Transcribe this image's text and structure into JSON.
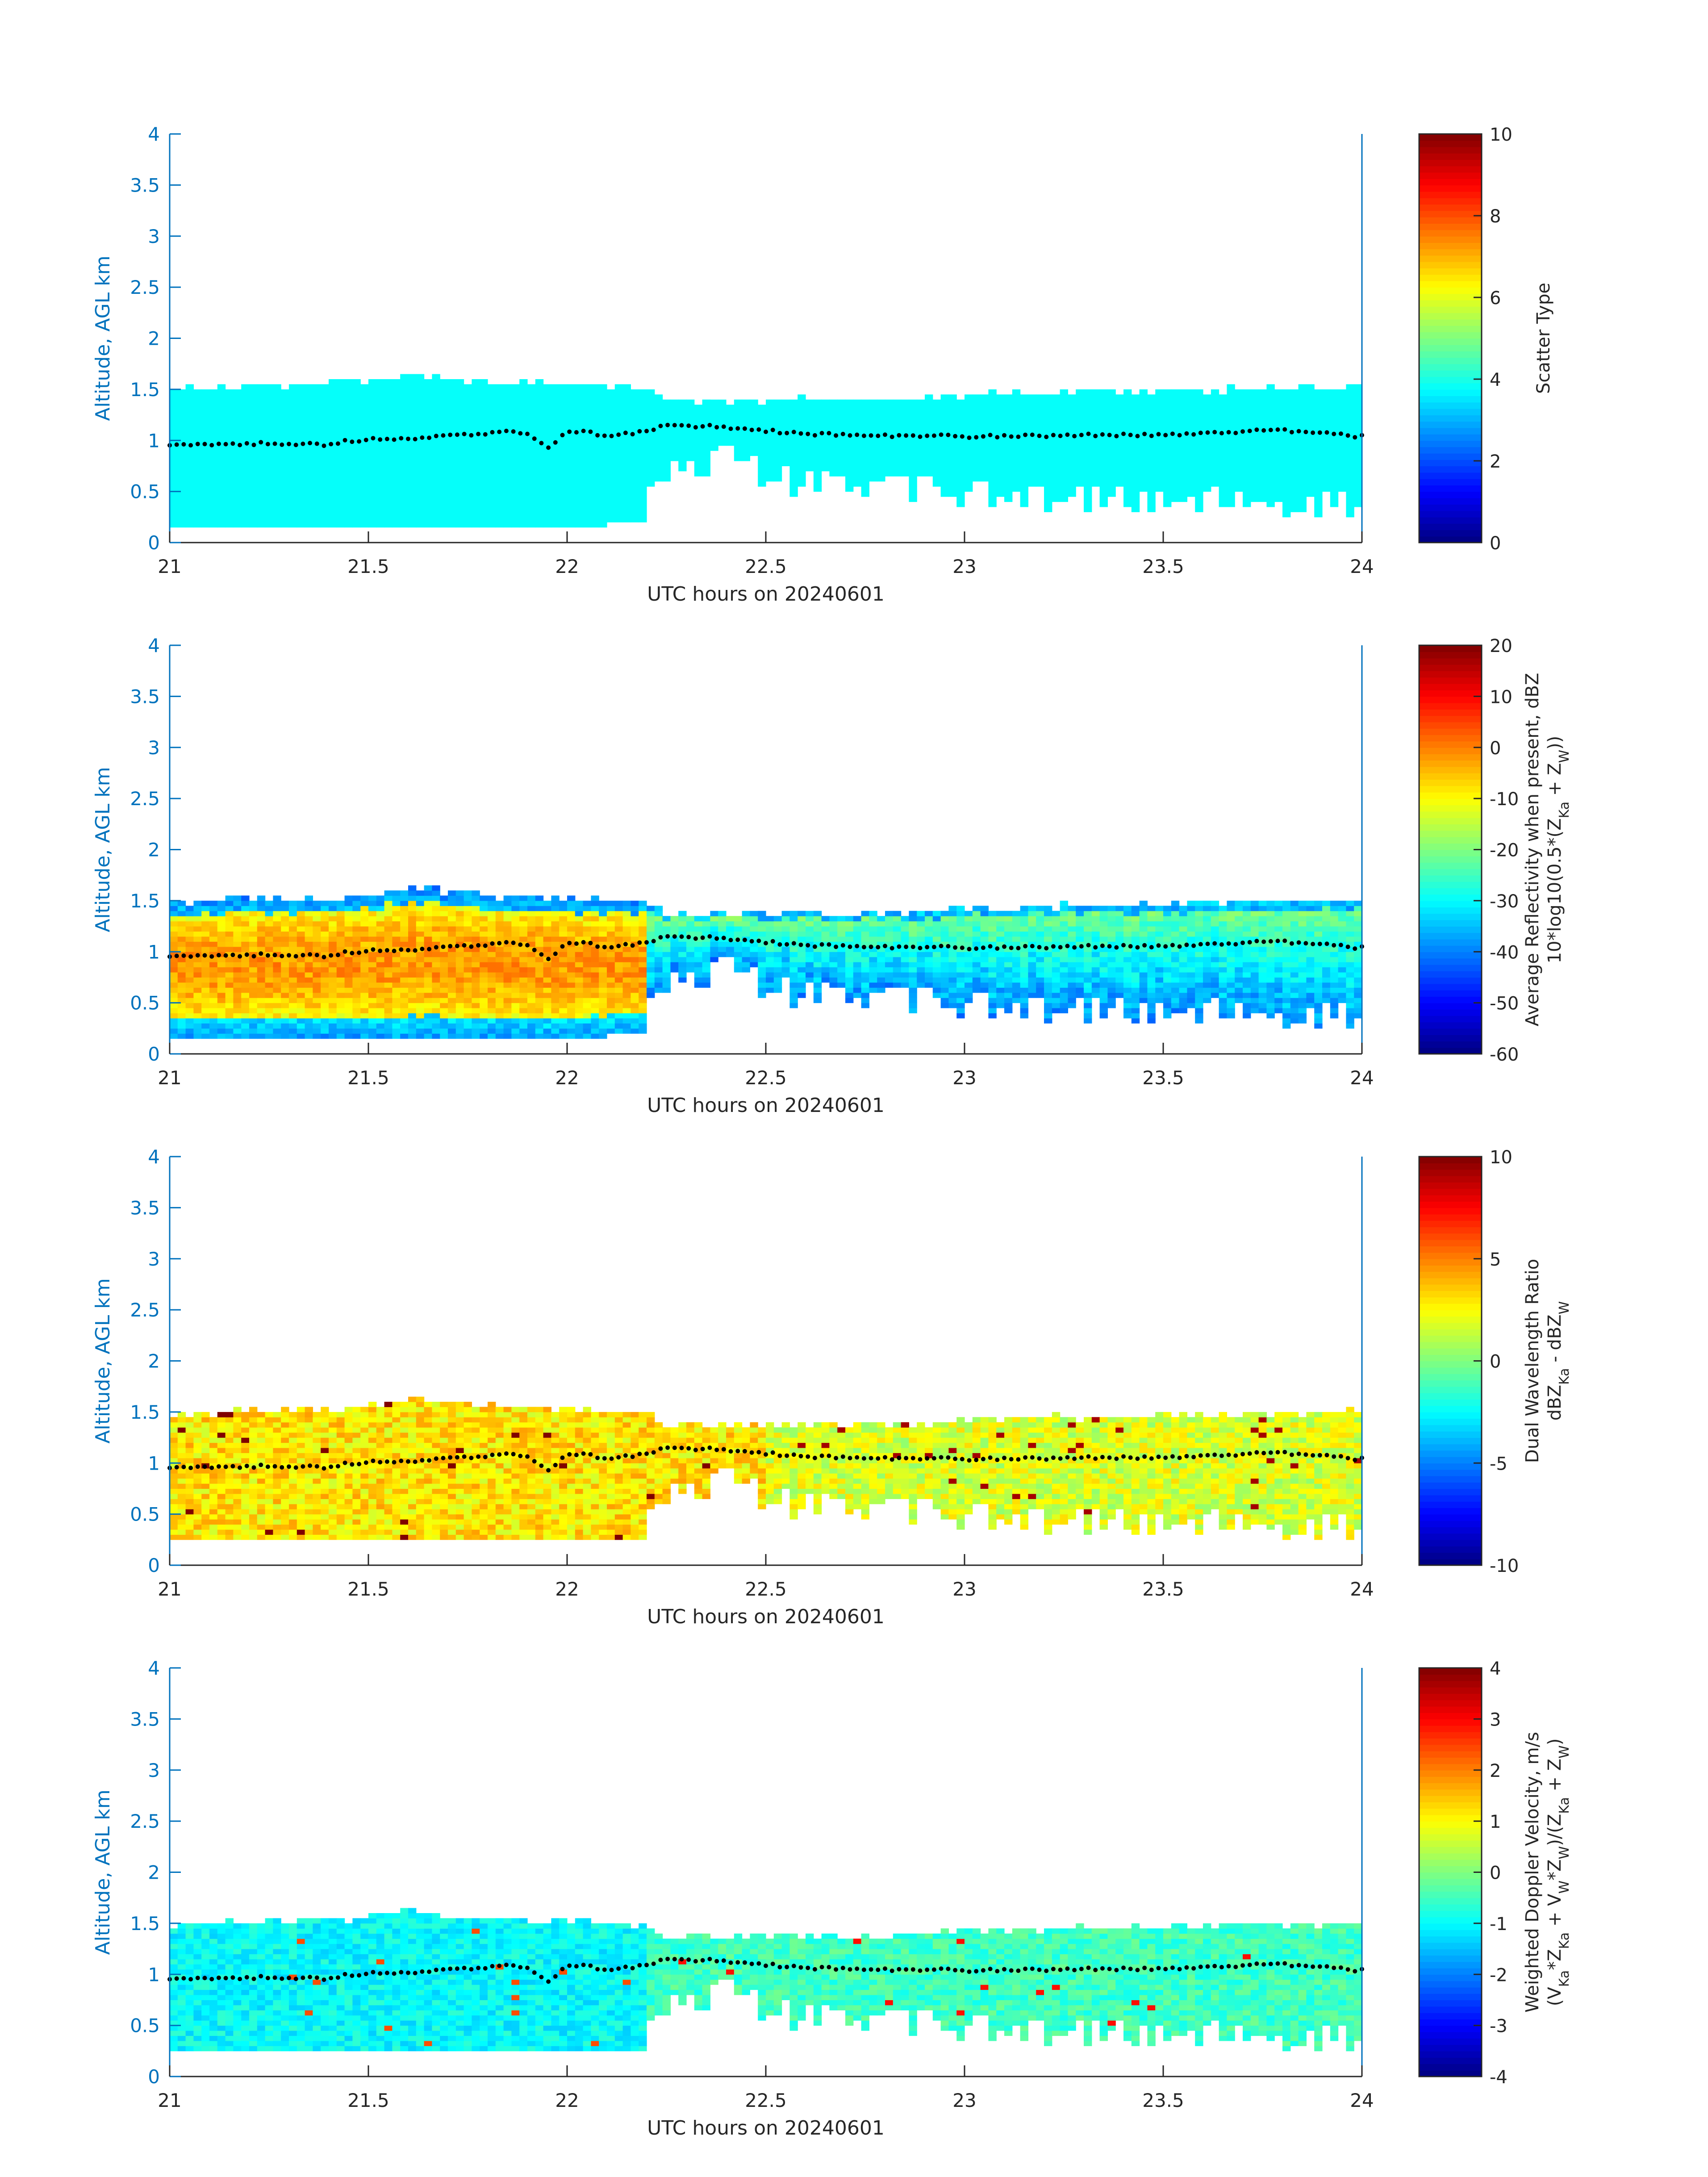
{
  "chart_data": [
    {
      "type": "heatmap",
      "xlabel": "UTC hours on 20240601",
      "ylabel": "Altitude, AGL km",
      "xlim": [
        21,
        24
      ],
      "ylim": [
        0,
        4
      ],
      "xticks": [
        "21",
        "21.5",
        "22",
        "22.5",
        "23",
        "23.5",
        "24"
      ],
      "yticks": [
        "0",
        "0.5",
        "1",
        "1.5",
        "2",
        "2.5",
        "3",
        "3.5",
        "4"
      ],
      "colorbar": {
        "label_lines": [
          "Scatter Type"
        ],
        "ticks": [
          "0",
          "2",
          "4",
          "6",
          "8",
          "10"
        ],
        "range": [
          0,
          10
        ]
      },
      "field": "scatter_type",
      "dominant_value": 3.8,
      "cloud_top_km": [
        [
          21.0,
          1.48
        ],
        [
          21.5,
          1.55
        ],
        [
          21.6,
          1.62
        ],
        [
          21.8,
          1.55
        ],
        [
          22.0,
          1.52
        ],
        [
          22.2,
          1.48
        ],
        [
          22.25,
          1.37
        ],
        [
          22.9,
          1.38
        ],
        [
          23.0,
          1.42
        ],
        [
          23.2,
          1.44
        ],
        [
          24.0,
          1.5
        ]
      ],
      "cloud_base_km": [
        [
          21.0,
          0.18
        ],
        [
          22.0,
          0.18
        ],
        [
          22.1,
          0.2
        ],
        [
          22.2,
          0.2
        ],
        [
          22.25,
          0.5
        ],
        [
          22.3,
          0.6
        ],
        [
          22.4,
          0.75
        ],
        [
          22.5,
          0.55
        ],
        [
          22.6,
          0.45
        ],
        [
          22.8,
          0.4
        ],
        [
          23.0,
          0.35
        ],
        [
          23.5,
          0.3
        ],
        [
          24.0,
          0.25
        ]
      ]
    },
    {
      "type": "heatmap",
      "xlabel": "UTC hours on 20240601",
      "ylabel": "Altitude, AGL km",
      "xlim": [
        21,
        24
      ],
      "ylim": [
        0,
        4
      ],
      "xticks": [
        "21",
        "21.5",
        "22",
        "22.5",
        "23",
        "23.5",
        "24"
      ],
      "yticks": [
        "0",
        "0.5",
        "1",
        "1.5",
        "2",
        "2.5",
        "3",
        "3.5",
        "4"
      ],
      "colorbar": {
        "label_lines": [
          "Average Reflectivity when present, dBZ",
          "10*log10(0.5*(Z_Ka + Z_W))"
        ],
        "ticks": [
          "-60",
          "-50",
          "-40",
          "-30",
          "-20",
          "-10",
          "0",
          "10",
          "20"
        ],
        "range": [
          -60,
          20
        ]
      },
      "field": "reflectivity_dbz",
      "typical_range_dbz": [
        -50,
        0
      ]
    },
    {
      "type": "heatmap",
      "xlabel": "UTC hours on 20240601",
      "ylabel": "Altitude, AGL km",
      "xlim": [
        21,
        24
      ],
      "ylim": [
        0,
        4
      ],
      "xticks": [
        "21",
        "21.5",
        "22",
        "22.5",
        "23",
        "23.5",
        "24"
      ],
      "yticks": [
        "0",
        "0.5",
        "1",
        "1.5",
        "2",
        "2.5",
        "3",
        "3.5",
        "4"
      ],
      "colorbar": {
        "label_lines": [
          "Dual Wavelength Ratio",
          "dBZ_Ka - dBZ_W"
        ],
        "ticks": [
          "-10",
          "-5",
          "0",
          "5",
          "10"
        ],
        "range": [
          -10,
          10
        ]
      },
      "field": "dual_wavelength_ratio_db",
      "typical_range_db": [
        0,
        4
      ]
    },
    {
      "type": "heatmap",
      "xlabel": "UTC hours on 20240601",
      "ylabel": "Altitude, AGL km",
      "xlim": [
        21,
        24
      ],
      "ylim": [
        0,
        4
      ],
      "xticks": [
        "21",
        "21.5",
        "22",
        "22.5",
        "23",
        "23.5",
        "24"
      ],
      "yticks": [
        "0",
        "0.5",
        "1",
        "1.5",
        "2",
        "2.5",
        "3",
        "3.5",
        "4"
      ],
      "colorbar": {
        "label_lines": [
          "Weighted Doppler Velocity, m/s",
          "(V_Ka*Z_Ka + V_W*Z_W)/(Z_Ka + Z_W)"
        ],
        "ticks": [
          "-4",
          "-3",
          "-2",
          "-1",
          "0",
          "1",
          "2",
          "3",
          "4"
        ],
        "range": [
          -4,
          4
        ]
      },
      "field": "weighted_doppler_velocity_ms",
      "typical_range_ms": [
        -1.5,
        -0.3
      ]
    }
  ],
  "overlay_line": {
    "style": "black dotted",
    "points_km": [
      [
        21.0,
        0.96
      ],
      [
        21.2,
        0.97
      ],
      [
        21.4,
        0.96
      ],
      [
        21.45,
        1.0
      ],
      [
        21.6,
        1.02
      ],
      [
        21.75,
        1.05
      ],
      [
        21.85,
        1.1
      ],
      [
        21.9,
        1.05
      ],
      [
        21.96,
        0.92
      ],
      [
        22.0,
        1.1
      ],
      [
        22.1,
        1.05
      ],
      [
        22.2,
        1.08
      ],
      [
        22.25,
        1.15
      ],
      [
        22.4,
        1.13
      ],
      [
        22.6,
        1.06
      ],
      [
        23.0,
        1.04
      ],
      [
        23.5,
        1.06
      ],
      [
        23.8,
        1.1
      ],
      [
        24.0,
        1.04
      ]
    ]
  }
}
